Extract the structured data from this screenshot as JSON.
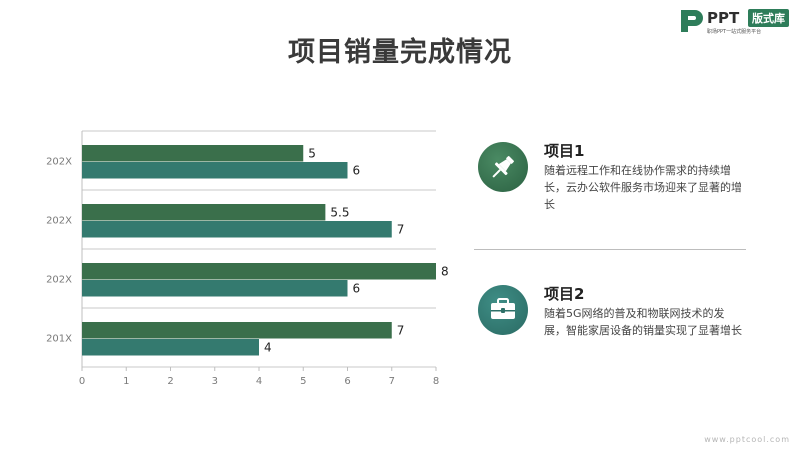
{
  "title": "项目销量完成情况",
  "logo": {
    "brand": "PPT",
    "badge": "版式库",
    "tagline": "职场PPT一站式服务平台"
  },
  "colors": {
    "series1": "#3a6f4b",
    "series2": "#347a6f",
    "grid": "#c8c8c8",
    "accent": "#2e7d5a"
  },
  "chart_data": {
    "type": "bar",
    "orientation": "horizontal",
    "categories": [
      "202X",
      "202X",
      "202X",
      "201X"
    ],
    "series": [
      {
        "values": [
          5,
          5.5,
          8,
          7
        ],
        "labels": [
          "5",
          "5.5",
          "8",
          "7"
        ]
      },
      {
        "values": [
          6,
          7,
          6,
          4
        ],
        "labels": [
          "6",
          "7",
          "6",
          "4"
        ]
      }
    ],
    "xlim": [
      0,
      8
    ],
    "xticks": [
      "0",
      "1",
      "2",
      "3",
      "4",
      "5",
      "6",
      "7",
      "8"
    ],
    "grid": true
  },
  "cards": [
    {
      "icon": "pushpin-icon",
      "title": "项目1",
      "text": "随着远程工作和在线协作需求的持续增长，云办公软件服务市场迎来了显著的增长"
    },
    {
      "icon": "briefcase-icon",
      "title": "项目2",
      "text": "随着5G网络的普及和物联网技术的发展，智能家居设备的销量实现了显著增长"
    }
  ],
  "footer": "www.pptcool.com"
}
